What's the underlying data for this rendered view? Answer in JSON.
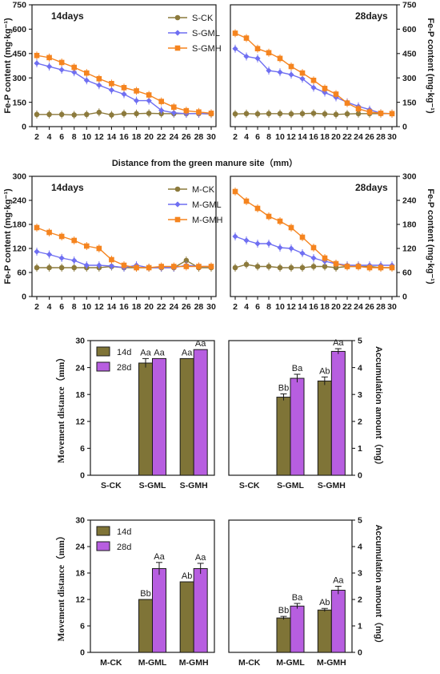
{
  "colors": {
    "ck": "#8c7a3c",
    "gml": "#6f6ff2",
    "gmh": "#f5841f",
    "bar14": "#7f7437",
    "bar28": "#b75ee0",
    "axis": "#1a1a1a"
  },
  "shared_x_label": "Distance from the green manure site（mm）",
  "chart_data": [
    {
      "id": "fep-s",
      "type": "line",
      "ylabel": "Fe-P content (mg·kg⁻¹)",
      "ylim": [
        0,
        750
      ],
      "yticks": [
        0,
        150,
        300,
        450,
        600,
        750
      ],
      "x": [
        2,
        4,
        6,
        8,
        10,
        12,
        14,
        16,
        18,
        20,
        22,
        24,
        26,
        28,
        30
      ],
      "legend": [
        "S-CK",
        "S-GML",
        "S-GMH"
      ],
      "panels": [
        {
          "label": "14days",
          "series": [
            {
              "name": "S-CK",
              "values": [
                75,
                75,
                75,
                72,
                75,
                88,
                72,
                80,
                80,
                82,
                80,
                80,
                80,
                80,
                78
              ]
            },
            {
              "name": "S-GML",
              "values": [
                390,
                370,
                350,
                335,
                285,
                255,
                225,
                200,
                160,
                160,
                100,
                85,
                80,
                80,
                80
              ]
            },
            {
              "name": "S-GMH",
              "values": [
                438,
                425,
                395,
                365,
                330,
                295,
                265,
                240,
                220,
                195,
                155,
                120,
                98,
                90,
                82
              ]
            }
          ]
        },
        {
          "label": "28days",
          "series": [
            {
              "name": "S-CK",
              "values": [
                78,
                80,
                78,
                80,
                80,
                78,
                80,
                82,
                78,
                75,
                78,
                80,
                80,
                80,
                80
              ]
            },
            {
              "name": "S-GML",
              "values": [
                480,
                432,
                420,
                345,
                335,
                320,
                295,
                240,
                210,
                180,
                150,
                125,
                105,
                82,
                80
              ]
            },
            {
              "name": "S-GMH",
              "values": [
                575,
                545,
                480,
                455,
                420,
                370,
                330,
                285,
                235,
                200,
                145,
                110,
                90,
                82,
                80
              ]
            }
          ]
        }
      ]
    },
    {
      "id": "fep-m",
      "type": "line",
      "ylabel": "Fe-P content (mg·kg⁻¹)",
      "ylim": [
        0,
        300
      ],
      "yticks": [
        0,
        60,
        120,
        180,
        240,
        300
      ],
      "x": [
        2,
        4,
        6,
        8,
        10,
        12,
        14,
        16,
        18,
        20,
        22,
        24,
        26,
        28,
        30
      ],
      "legend": [
        "M-CK",
        "M-GML",
        "M-GMH"
      ],
      "panels": [
        {
          "label": "14days",
          "series": [
            {
              "name": "M-CK",
              "values": [
                72,
                72,
                72,
                72,
                72,
                72,
                75,
                72,
                72,
                72,
                72,
                72,
                90,
                72,
                72
              ]
            },
            {
              "name": "M-GML",
              "values": [
                112,
                105,
                96,
                90,
                78,
                78,
                76,
                72,
                78,
                72,
                72,
                72,
                78,
                75,
                75
              ]
            },
            {
              "name": "M-GMH",
              "values": [
                172,
                160,
                150,
                140,
                126,
                120,
                92,
                78,
                72,
                72,
                75,
                75,
                75,
                75,
                75
              ]
            }
          ]
        },
        {
          "label": "28days",
          "series": [
            {
              "name": "M-CK",
              "values": [
                72,
                80,
                75,
                75,
                72,
                72,
                72,
                75,
                75,
                72,
                75,
                75,
                75,
                72,
                72
              ]
            },
            {
              "name": "M-GML",
              "values": [
                150,
                140,
                132,
                132,
                122,
                120,
                108,
                96,
                88,
                82,
                78,
                78,
                78,
                78,
                78
              ]
            },
            {
              "name": "M-GMH",
              "values": [
                262,
                238,
                220,
                200,
                188,
                172,
                148,
                122,
                96,
                82,
                75,
                75,
                72,
                72,
                72
              ]
            }
          ]
        }
      ]
    },
    {
      "id": "bars-s",
      "type": "bar",
      "categories": [
        "S-CK",
        "S-GML",
        "S-GMH"
      ],
      "legend": [
        "14d",
        "28d"
      ],
      "panels": [
        {
          "ylabel": "Movement distance（mm）",
          "ylim": [
            0,
            30
          ],
          "yticks": [
            0,
            6,
            12,
            18,
            24,
            30
          ],
          "series": [
            {
              "name": "14d",
              "values": [
                0,
                25,
                26
              ],
              "errors": [
                0,
                1.0,
                0
              ],
              "labels": [
                "",
                "Aa",
                "Aa"
              ]
            },
            {
              "name": "28d",
              "values": [
                0,
                26,
                28
              ],
              "errors": [
                0,
                0,
                0
              ],
              "labels": [
                "",
                "Aa",
                "Aa"
              ]
            }
          ]
        },
        {
          "ylabel": "Accumulation amount（mg）",
          "ylim": [
            0,
            5
          ],
          "yticks": [
            0,
            1,
            2,
            3,
            4,
            5
          ],
          "series": [
            {
              "name": "14d",
              "values": [
                0,
                2.9,
                3.5
              ],
              "errors": [
                0,
                0.12,
                0.15
              ],
              "labels": [
                "",
                "Bb",
                "Ab"
              ]
            },
            {
              "name": "28d",
              "values": [
                0,
                3.6,
                4.6
              ],
              "errors": [
                0,
                0.15,
                0.1
              ],
              "labels": [
                "",
                "Ba",
                "Aa"
              ]
            }
          ]
        }
      ]
    },
    {
      "id": "bars-m",
      "type": "bar",
      "categories": [
        "M-CK",
        "M-GML",
        "M-GMH"
      ],
      "legend": [
        "14d",
        "28d"
      ],
      "panels": [
        {
          "ylabel": "Movement distance（mm）",
          "ylim": [
            0,
            30
          ],
          "yticks": [
            0,
            6,
            12,
            18,
            24,
            30
          ],
          "series": [
            {
              "name": "14d",
              "values": [
                0,
                12,
                16
              ],
              "errors": [
                0,
                0,
                0
              ],
              "labels": [
                "",
                "Bb",
                "Ab"
              ]
            },
            {
              "name": "28d",
              "values": [
                0,
                19,
                19
              ],
              "errors": [
                0,
                1.4,
                1.2
              ],
              "labels": [
                "",
                "Aa",
                "Aa"
              ]
            }
          ]
        },
        {
          "ylabel": "Accumulation amount（mg）",
          "ylim": [
            0,
            5
          ],
          "yticks": [
            0,
            1,
            2,
            3,
            4,
            5
          ],
          "series": [
            {
              "name": "14d",
              "values": [
                0,
                1.3,
                1.6
              ],
              "errors": [
                0,
                0.06,
                0.06
              ],
              "labels": [
                "",
                "Bb",
                "Ab"
              ]
            },
            {
              "name": "28d",
              "values": [
                0,
                1.75,
                2.35
              ],
              "errors": [
                0,
                0.1,
                0.15
              ],
              "labels": [
                "",
                "Ba",
                "Aa"
              ]
            }
          ]
        }
      ]
    }
  ]
}
